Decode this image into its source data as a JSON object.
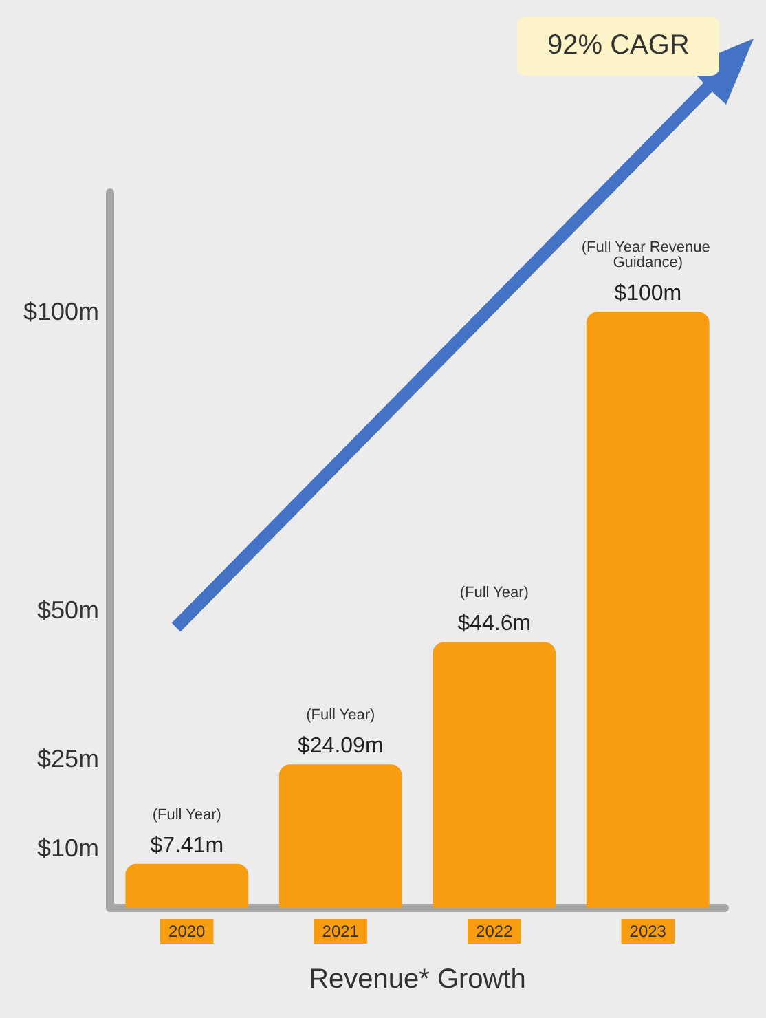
{
  "chart_data": {
    "type": "bar",
    "xlabel": "Revenue* Growth",
    "categories": [
      "2020",
      "2021",
      "2022",
      "2023"
    ],
    "values": [
      7.41,
      24.09,
      44.6,
      100
    ],
    "value_labels": [
      "$7.41m",
      "$24.09m",
      "$44.6m",
      "$100m"
    ],
    "color": "#f99d10",
    "ylim": [
      0,
      120
    ],
    "yticks": [
      {
        "value": 10,
        "label": "$10m"
      },
      {
        "value": 25,
        "label": "$25m"
      },
      {
        "value": 50,
        "label": "$50m"
      },
      {
        "value": 100,
        "label": "$100m"
      }
    ],
    "grid": false,
    "annotations": [
      "92% CAGR",
      {
        "text": "(Full Year)",
        "x": "2020",
        "y": 7.41
      },
      {
        "text": "(Full Year)",
        "x": "2021",
        "y": 24.09
      },
      {
        "text": "(Full Year)",
        "x": "2022",
        "y": 44.6
      },
      {
        "text": "(Full Year Revenue Guidance)",
        "x": "2023",
        "y": 100
      }
    ]
  }
}
